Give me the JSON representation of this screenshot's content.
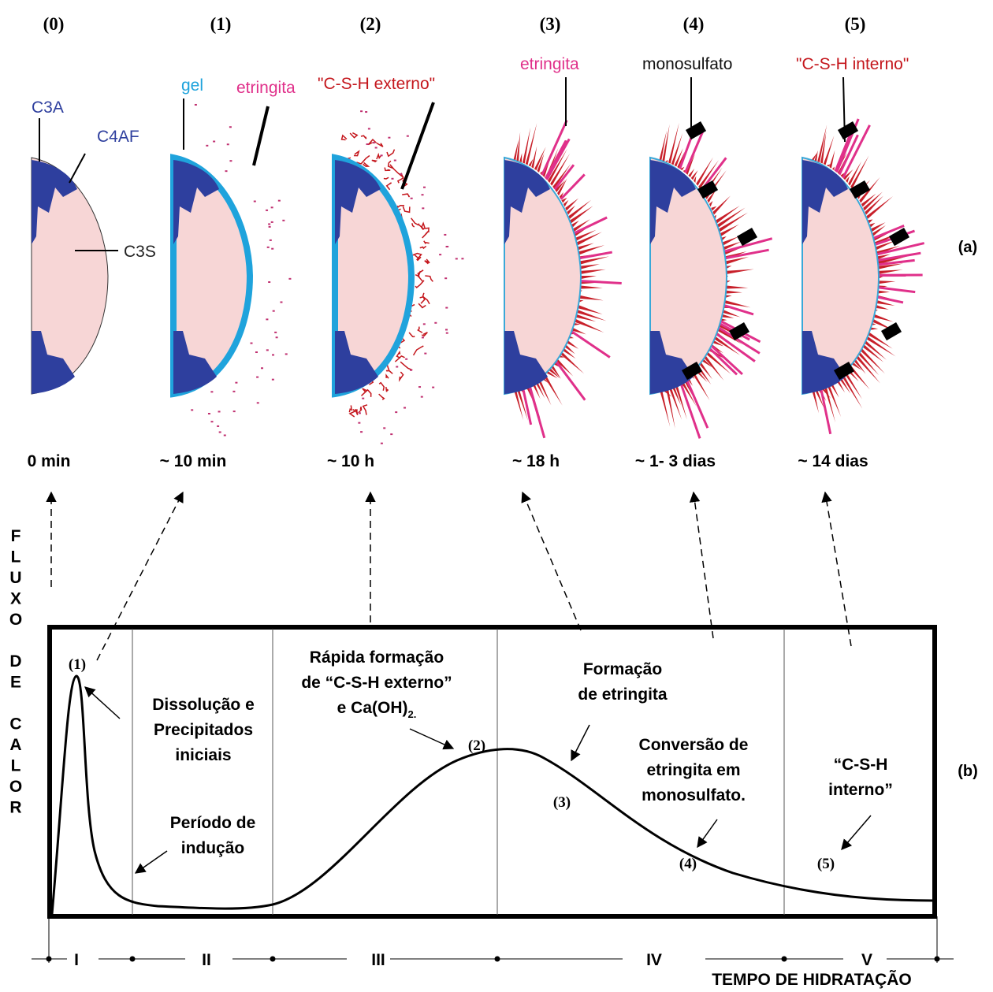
{
  "stages": [
    {
      "number": "(0)",
      "time": "0 min"
    },
    {
      "number": "(1)",
      "time": "~ 10 min"
    },
    {
      "number": "(2)",
      "time": "~ 10 h"
    },
    {
      "number": "(3)",
      "time": "~ 18 h"
    },
    {
      "number": "(4)",
      "time": "~ 1- 3 dias"
    },
    {
      "number": "(5)",
      "time": "~ 14 dias"
    }
  ],
  "labels": [
    "C3A",
    "C4AF",
    "C3S",
    "gel",
    "etringita",
    "\"C-S-H externo\"",
    "etringita",
    "monosulfato",
    "\"C-S-H interno\""
  ],
  "panel_a": "(a)",
  "panel_b": "(b)",
  "y_axis_label": "FLUXO DE CALOR",
  "x_axis_label": "TEMPO DE HIDRATAÇÃO",
  "periods": [
    "I",
    "II",
    "III",
    "IV",
    "V"
  ],
  "curve_points": [
    "(1)",
    "(2)",
    "(3)",
    "(4)",
    "(5)"
  ],
  "annotations": [
    {
      "lines": [
        "Dissolução e",
        "Precipitados",
        "iniciais"
      ]
    },
    {
      "lines": [
        "Período de",
        "indução"
      ]
    },
    {
      "lines": [
        "Rápida formação",
        "de “C-S-H externo”",
        "e Ca(OH)"
      ],
      "subscript": "2."
    },
    {
      "lines": [
        "Formação",
        "de etringita"
      ]
    },
    {
      "lines": [
        "Conversão de",
        "etringita em",
        "monosulfato."
      ]
    },
    {
      "lines": [
        "“C-S-H",
        "interno”"
      ]
    }
  ]
}
